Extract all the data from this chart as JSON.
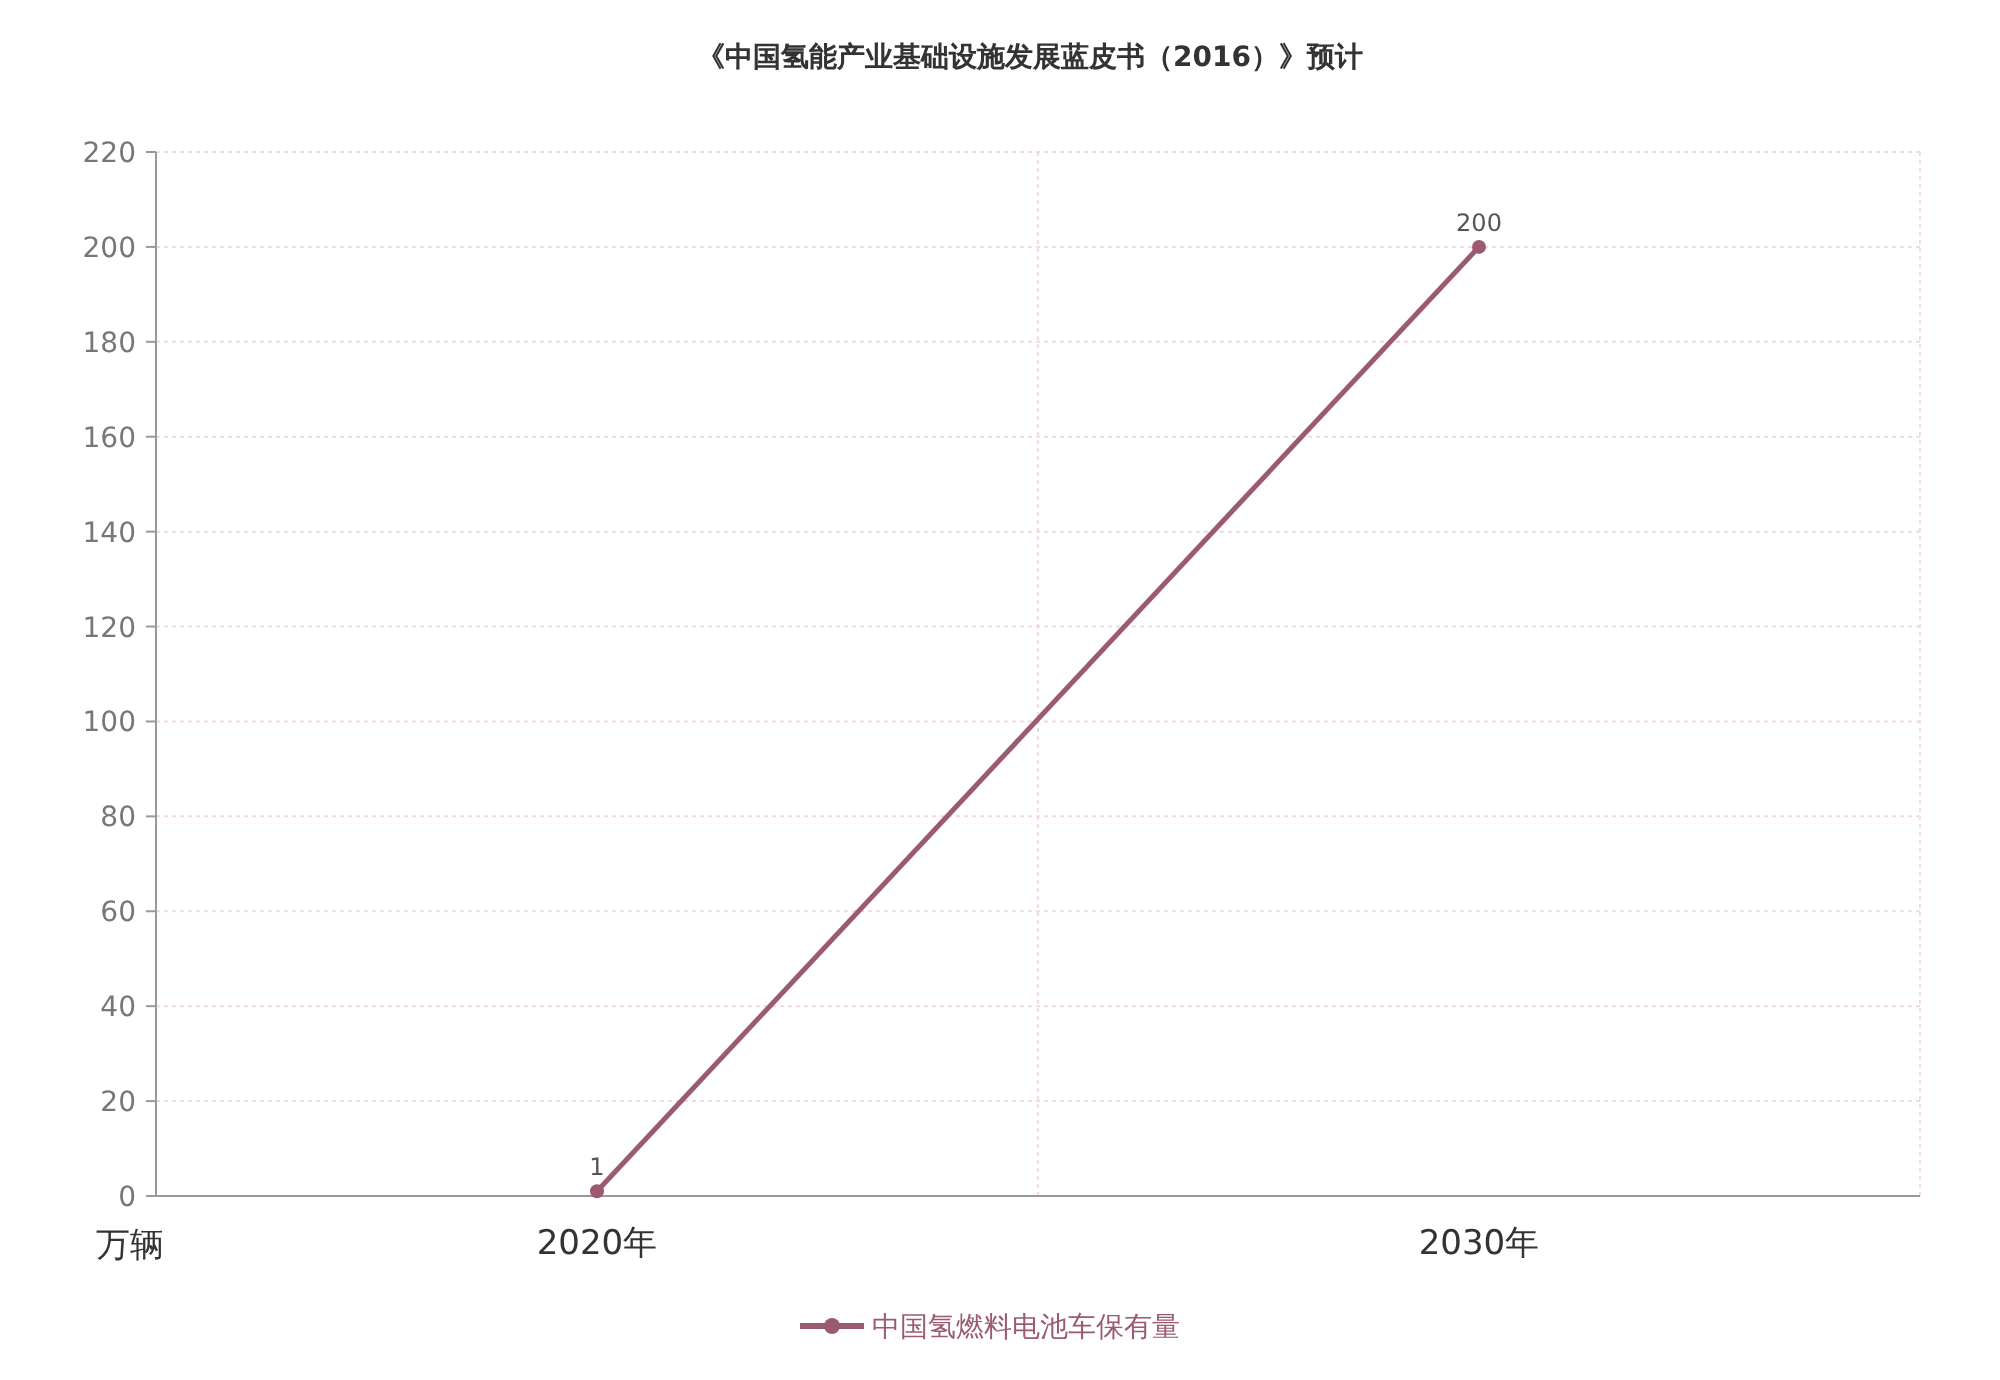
{
  "chart_data": {
    "type": "line",
    "title": "《中国氢能产业基础设施发展蓝皮书（2016）》预计",
    "ylabel": "万辆",
    "categories": [
      "2020年",
      "2030年"
    ],
    "series": [
      {
        "name": "中国氢燃料电池车保有量",
        "color": "#9b5a72",
        "values": [
          1,
          200
        ]
      }
    ],
    "ylim": [
      0,
      220
    ],
    "yticks": [
      0,
      20,
      40,
      60,
      80,
      100,
      120,
      140,
      160,
      180,
      200,
      220
    ],
    "grid": true,
    "legend": "bottom",
    "marker": "circle",
    "data_labels": true
  }
}
